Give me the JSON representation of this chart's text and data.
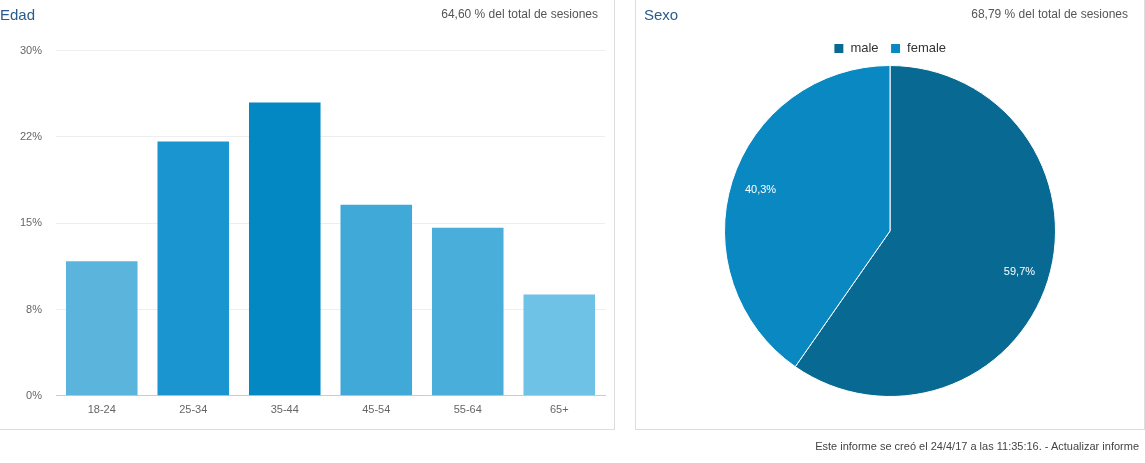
{
  "chart_data": [
    {
      "type": "bar",
      "title": "Edad",
      "subtitle": "64,60 % del total de sesiones",
      "categories": [
        "18-24",
        "25-34",
        "35-44",
        "45-54",
        "55-64",
        "65+"
      ],
      "values": [
        11.7,
        22.1,
        25.5,
        16.6,
        14.6,
        8.8
      ],
      "colors": [
        "#5ab4dc",
        "#1a95d0",
        "#0388c4",
        "#41a9d8",
        "#4aaedb",
        "#6ec2e6"
      ],
      "ylim": [
        0,
        30
      ],
      "yticks": [
        {
          "value": 0,
          "label": "0%"
        },
        {
          "value": 7.5,
          "label": "8%"
        },
        {
          "value": 15,
          "label": "15%"
        },
        {
          "value": 22.5,
          "label": "22%"
        },
        {
          "value": 30,
          "label": "30%"
        }
      ],
      "grid": "y",
      "legend": false
    },
    {
      "type": "pie",
      "title": "Sexo",
      "subtitle": "68,79 % del total de sesiones",
      "categories": [
        "male",
        "female"
      ],
      "values": [
        59.7,
        40.3
      ],
      "colors": [
        "#086a92",
        "#0a88c2"
      ],
      "value_labels": [
        "59,7%",
        "40,3%"
      ],
      "legend": "top",
      "annotations": [
        "Este informe se creó el 24/4/17 a las 11:35:16. - Actualizar informe"
      ]
    }
  ]
}
